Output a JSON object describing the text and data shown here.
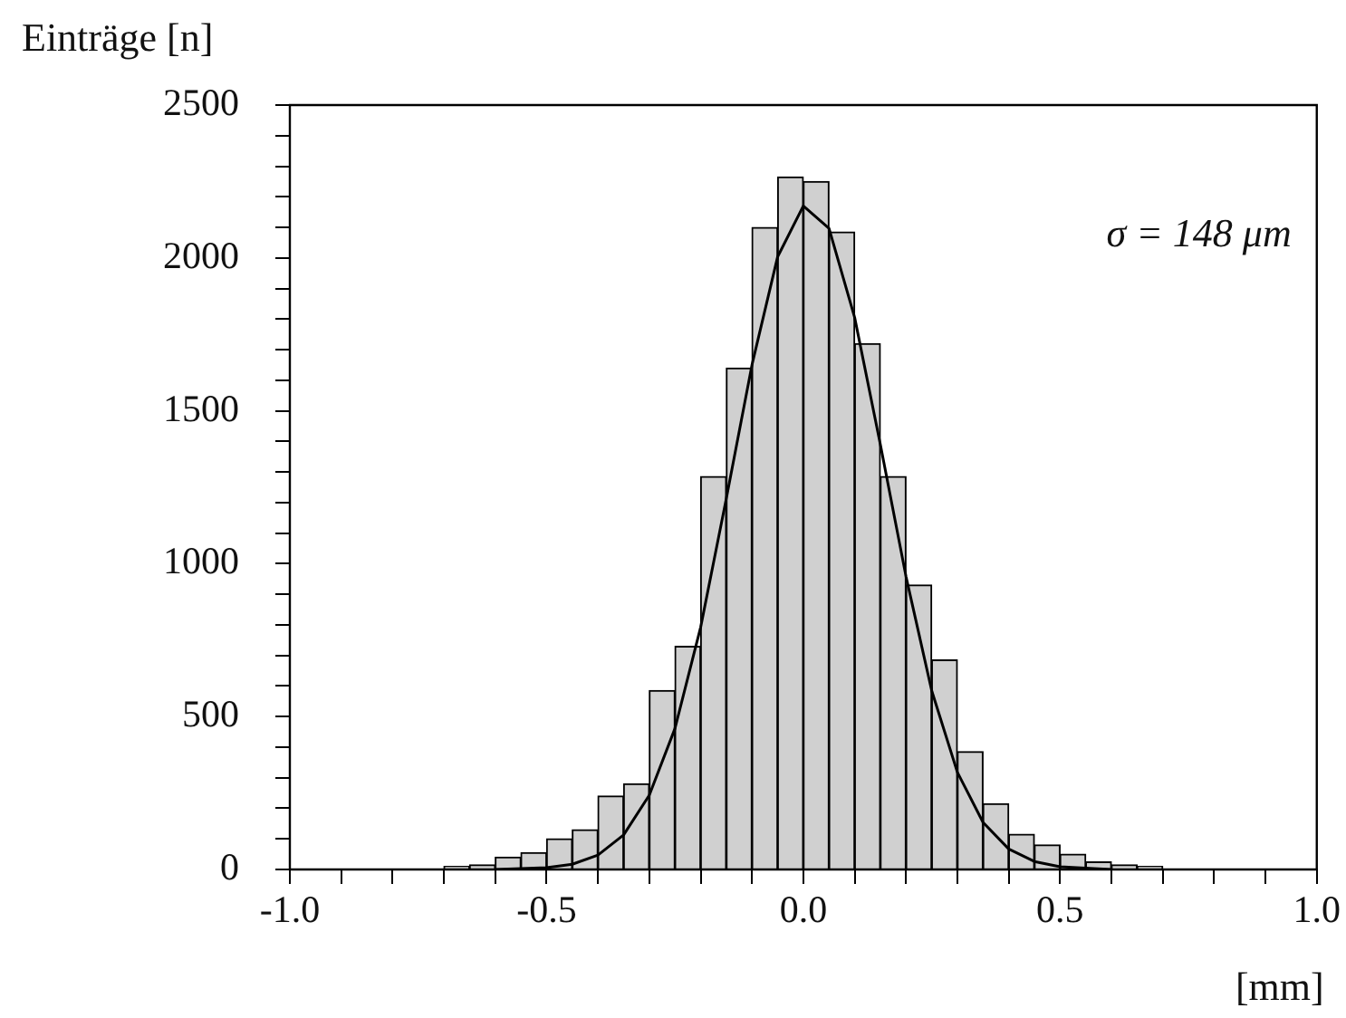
{
  "chart_data": {
    "type": "histogram",
    "xlabel": "[mm]",
    "ylabel": "Einträge [n]",
    "bins": [
      -0.7,
      -0.65,
      -0.6,
      -0.55,
      -0.5,
      -0.45,
      -0.4,
      -0.35,
      -0.3,
      -0.25,
      -0.2,
      -0.15,
      -0.1,
      -0.05,
      0,
      0.05,
      0.1,
      0.15,
      0.2,
      0.25,
      0.3,
      0.35,
      0.4,
      0.45,
      0.5,
      0.55,
      0.6,
      0.65,
      0.7
    ],
    "values": [
      10,
      15,
      40,
      55,
      100,
      130,
      240,
      280,
      585,
      730,
      1285,
      1640,
      2100,
      2265,
      2250,
      2085,
      1720,
      1285,
      930,
      685,
      385,
      215,
      115,
      80,
      50,
      25,
      15,
      10
    ],
    "color": "#d0d0d0",
    "series": [
      {
        "type": "line",
        "color": "#000000",
        "x": [
          -0.6,
          -0.5,
          -0.45,
          -0.4,
          -0.35,
          -0.3,
          -0.25,
          -0.2,
          -0.15,
          -0.1,
          -0.05,
          0,
          0.05,
          0.1,
          0.15,
          0.2,
          0.25,
          0.3,
          0.35,
          0.4,
          0.45,
          0.5,
          0.6
        ],
        "values": [
          0,
          6,
          17,
          47,
          113,
          243,
          461,
          792,
          1213,
          1650,
          2004,
          2170,
          2097,
          1805,
          1390,
          958,
          585,
          318,
          154,
          67,
          26,
          9,
          0
        ]
      }
    ],
    "xlim": [
      -1.0,
      1.0
    ],
    "xticks": [
      {
        "value": -1,
        "label": "-1.0"
      },
      {
        "value": -0.9,
        "label": null
      },
      {
        "value": -0.8,
        "label": null
      },
      {
        "value": -0.7,
        "label": null
      },
      {
        "value": -0.6,
        "label": null
      },
      -0.5,
      {
        "value": -0.4,
        "label": null
      },
      {
        "value": -0.3,
        "label": null
      },
      {
        "value": -0.2,
        "label": null
      },
      {
        "value": -0.1,
        "label": null
      },
      {
        "value": 0,
        "label": "0.0"
      },
      {
        "value": 0.1,
        "label": null
      },
      {
        "value": 0.2,
        "label": null
      },
      {
        "value": 0.3,
        "label": null
      },
      {
        "value": 0.4,
        "label": null
      },
      0.5,
      {
        "value": 0.6,
        "label": null
      },
      {
        "value": 0.7,
        "label": null
      },
      {
        "value": 0.8,
        "label": null
      },
      {
        "value": 0.9,
        "label": null
      },
      {
        "value": 1,
        "label": "1.0"
      }
    ],
    "ylim": [
      0,
      2500
    ],
    "yticks": [
      0,
      {
        "value": 100,
        "label": null
      },
      {
        "value": 200,
        "label": null
      },
      {
        "value": 300,
        "label": null
      },
      {
        "value": 400,
        "label": null
      },
      500,
      {
        "value": 600,
        "label": null
      },
      {
        "value": 700,
        "label": null
      },
      {
        "value": 800,
        "label": null
      },
      {
        "value": 900,
        "label": null
      },
      1000,
      {
        "value": 1100,
        "label": null
      },
      {
        "value": 1200,
        "label": null
      },
      {
        "value": 1300,
        "label": null
      },
      {
        "value": 1400,
        "label": null
      },
      1500,
      {
        "value": 1600,
        "label": null
      },
      {
        "value": 1700,
        "label": null
      },
      {
        "value": 1800,
        "label": null
      },
      {
        "value": 1900,
        "label": null
      },
      2000,
      {
        "value": 2100,
        "label": null
      },
      {
        "value": 2200,
        "label": null
      },
      {
        "value": 2300,
        "label": null
      },
      {
        "value": 2400,
        "label": null
      },
      2500
    ],
    "annotations": [
      "σ = 148 μm"
    ],
    "grid": false,
    "legend": false,
    "marker": "none",
    "line_style": "solid"
  }
}
